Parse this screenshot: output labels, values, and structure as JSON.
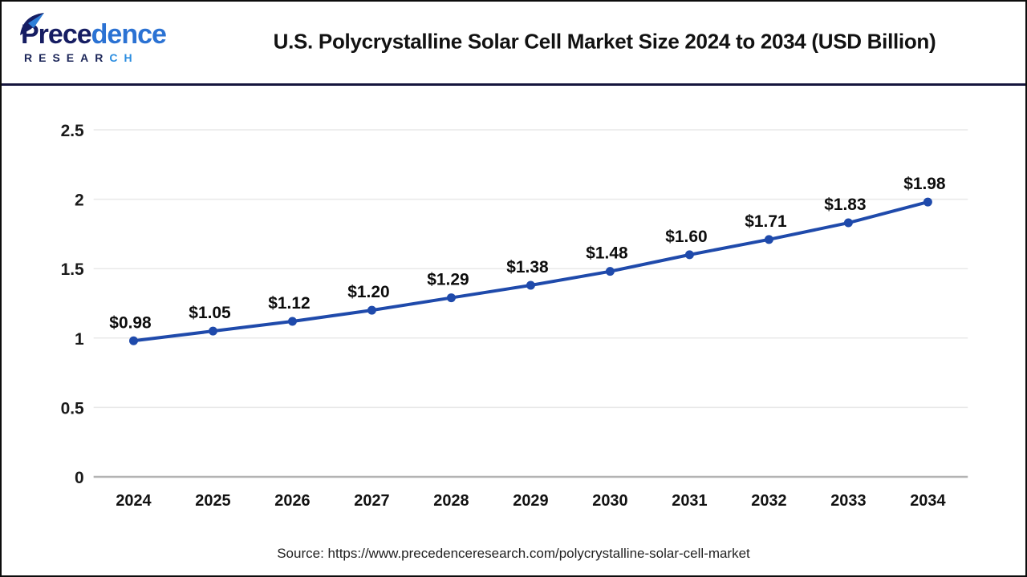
{
  "header": {
    "logo": {
      "brand_primary": "Prece",
      "brand_secondary": "dence",
      "subbrand_primary": "RESEAR",
      "subbrand_secondary": "CH",
      "navy": "#161d62",
      "blue": "#2b72d3"
    },
    "title": "U.S. Polycrystalline Solar Cell Market Size 2024 to 2034 (USD Billion)"
  },
  "chart_data": {
    "type": "line",
    "title": "U.S. Polycrystalline Solar Cell Market Size 2024 to 2034 (USD Billion)",
    "categories": [
      "2024",
      "2025",
      "2026",
      "2027",
      "2028",
      "2029",
      "2030",
      "2031",
      "2032",
      "2033",
      "2034"
    ],
    "values": [
      0.98,
      1.05,
      1.12,
      1.2,
      1.29,
      1.38,
      1.48,
      1.6,
      1.71,
      1.83,
      1.98
    ],
    "point_labels": [
      "$0.98",
      "$1.05",
      "$1.12",
      "$1.20",
      "$1.29",
      "$1.38",
      "$1.48",
      "$1.60",
      "$1.71",
      "$1.83",
      "$1.98"
    ],
    "xlabel": "",
    "ylabel": "",
    "ylim": [
      0,
      2.5
    ],
    "yticks": [
      0,
      0.5,
      1,
      1.5,
      2,
      2.5
    ],
    "ytick_labels": [
      "0",
      "0.5",
      "1",
      "1.5",
      "2",
      "2.5"
    ],
    "line_color": "#1f4aab",
    "marker": "circle",
    "grid": true,
    "legend": "none"
  },
  "footer": {
    "source": "Source: https://www.precedenceresearch.com/polycrystalline-solar-cell-market"
  }
}
